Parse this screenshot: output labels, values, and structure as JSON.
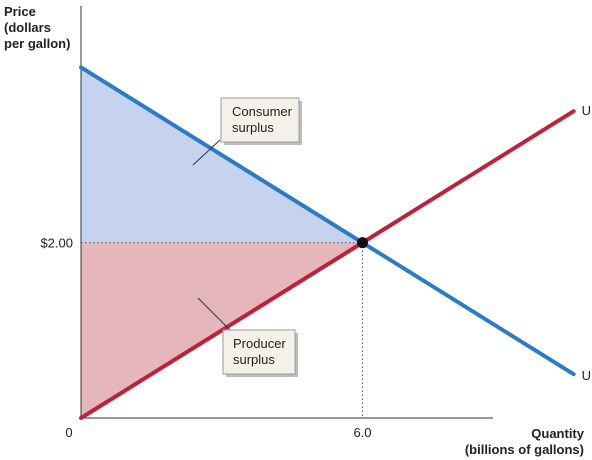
{
  "chart_data": {
    "type": "line",
    "ylabel_lines": [
      "Price",
      "(dollars",
      "per gallon)"
    ],
    "xlabel_lines": [
      "Quantity",
      "(billions of gallons)"
    ],
    "x_tick_origin": "0",
    "x_tick_eq": "6.0",
    "y_tick_eq": "$2.00",
    "equilibrium": {
      "x": 6.0,
      "y": 2.0
    },
    "xlim": [
      0,
      10.7
    ],
    "ylim": [
      0,
      4.7
    ],
    "series": [
      {
        "name": "U.S. demand",
        "color": "#2a7cc4",
        "points": [
          [
            0,
            4.0
          ],
          [
            10.5,
            0.5
          ]
        ]
      },
      {
        "name": "U.S. supply",
        "color": "#c0203a",
        "points": [
          [
            0,
            0.0
          ],
          [
            10.5,
            3.5
          ]
        ]
      }
    ],
    "areas": [
      {
        "label_lines": [
          "Consumer",
          "surplus"
        ],
        "color": "#c5d3ee"
      },
      {
        "label_lines": [
          "Producer",
          "surplus"
        ],
        "color": "#e5b7bb"
      }
    ]
  }
}
